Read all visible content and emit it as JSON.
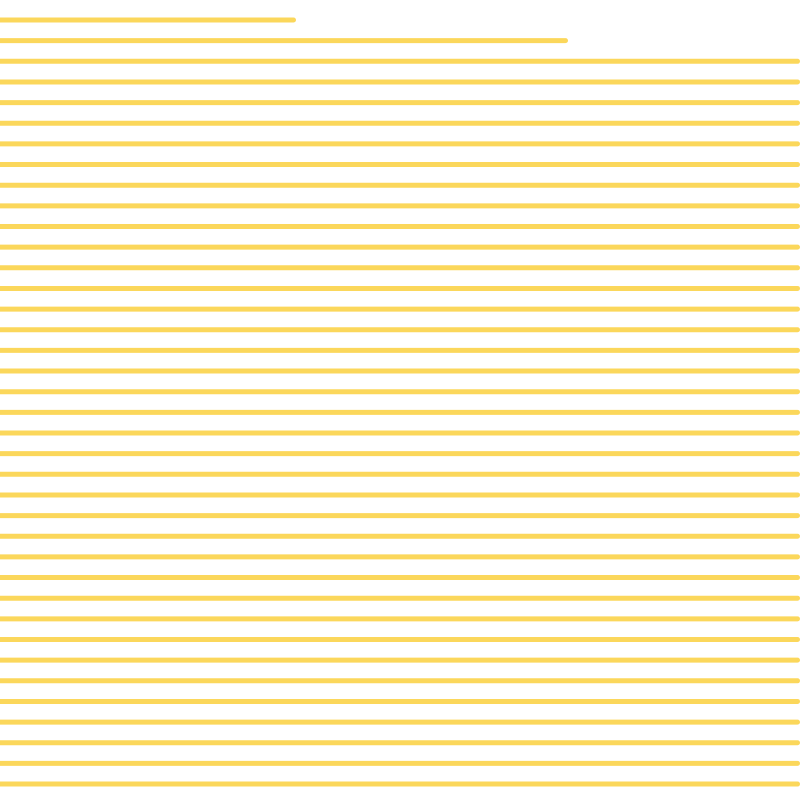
{
  "pattern": {
    "name": "horizontal-stripes",
    "background_color": "#ffffff",
    "stripe_color": "#fbd75b",
    "stripe_count": 39,
    "full_width_stripe_count": 37,
    "partial_stripe_fill_fractions": [
      0.37,
      0.71
    ]
  }
}
